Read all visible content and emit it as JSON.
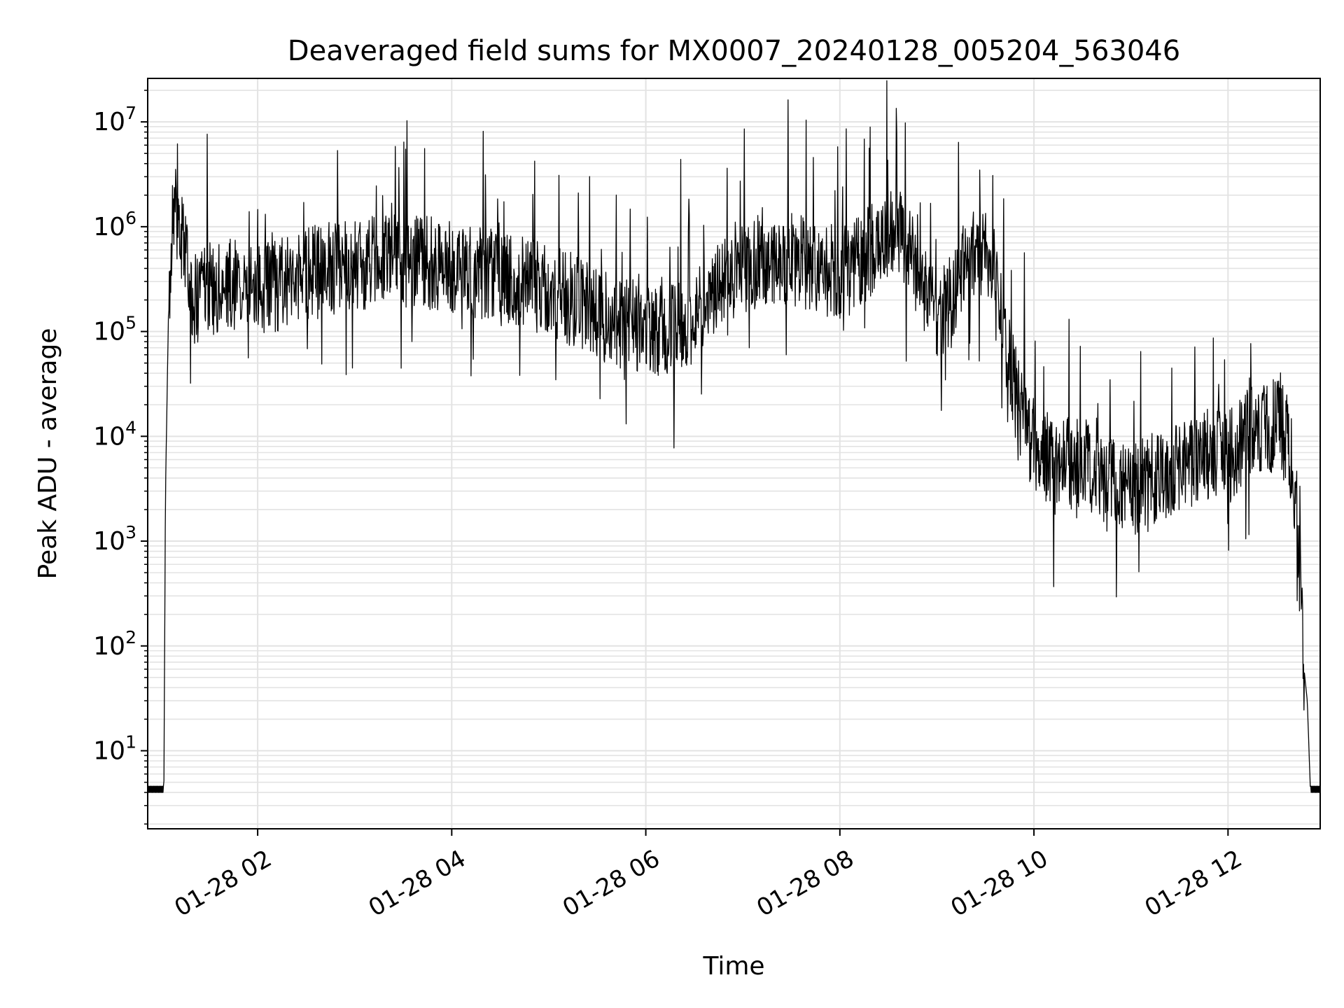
{
  "chart_data": {
    "type": "line",
    "title": "Deaveraged field sums for MX0007_20240128_005204_563046",
    "xlabel": "Time",
    "ylabel": "Peak ADU - average",
    "xscale": "time",
    "yscale": "log",
    "grid": "on (major and minor)",
    "legend": "none",
    "xlim": [
      "2024-01-28 00:52",
      "2024-01-28 12:57"
    ],
    "ylim": [
      1.8,
      26000000
    ],
    "x_ticks": [
      "2024-01-28 02:00",
      "2024-01-28 04:00",
      "2024-01-28 06:00",
      "2024-01-28 08:00",
      "2024-01-28 10:00",
      "2024-01-28 12:00"
    ],
    "x_tick_labels": [
      "01-28 02",
      "01-28 04",
      "01-28 06",
      "01-28 08",
      "01-28 10",
      "01-28 12"
    ],
    "y_tick_values": [
      10,
      100,
      1000,
      10000,
      100000,
      1000000,
      10000000
    ],
    "y_tick_labels": [
      {
        "base": "10",
        "exp": "1"
      },
      {
        "base": "10",
        "exp": "2"
      },
      {
        "base": "10",
        "exp": "3"
      },
      {
        "base": "10",
        "exp": "4"
      },
      {
        "base": "10",
        "exp": "5"
      },
      {
        "base": "10",
        "exp": "6"
      },
      {
        "base": "10",
        "exp": "7"
      }
    ],
    "series": [
      {
        "color": "#000000",
        "x": [
          "00:52",
          "01:02",
          "01:03",
          "01:05",
          "01:07",
          "01:09",
          "01:12",
          "01:15",
          "01:20",
          "01:30",
          "01:40",
          "01:50",
          "02:00",
          "02:15",
          "02:30",
          "02:45",
          "03:00",
          "03:15",
          "03:30",
          "03:45",
          "04:00",
          "04:15",
          "04:30",
          "04:45",
          "05:00",
          "05:15",
          "05:30",
          "05:45",
          "06:00",
          "06:15",
          "06:30",
          "06:45",
          "07:00",
          "07:15",
          "07:30",
          "07:45",
          "08:00",
          "08:15",
          "08:30",
          "08:40",
          "08:50",
          "09:00",
          "09:10",
          "09:20",
          "09:30",
          "09:40",
          "09:50",
          "10:00",
          "10:15",
          "10:30",
          "10:45",
          "11:00",
          "11:15",
          "11:30",
          "11:45",
          "12:00",
          "12:10",
          "12:20",
          "12:30",
          "12:36",
          "12:40",
          "12:43",
          "12:45",
          "12:47",
          "12:49",
          "12:51",
          "12:57"
        ],
        "y": [
          4,
          4,
          3000,
          200000,
          1000000,
          1300000,
          1000000,
          600000,
          200000,
          250000,
          300000,
          250000,
          250000,
          280000,
          350000,
          400000,
          450000,
          450000,
          480000,
          450000,
          420000,
          380000,
          320000,
          280000,
          250000,
          200000,
          150000,
          120000,
          110000,
          100000,
          130000,
          250000,
          400000,
          500000,
          480000,
          420000,
          350000,
          500000,
          900000,
          800000,
          300000,
          150000,
          200000,
          600000,
          500000,
          150000,
          20000,
          8000,
          5000,
          6000,
          3500,
          3000,
          4000,
          5000,
          7000,
          6000,
          10000,
          12000,
          13000,
          10000,
          5000,
          1500,
          300,
          60,
          30,
          4,
          4
        ]
      }
    ],
    "annotations": []
  }
}
